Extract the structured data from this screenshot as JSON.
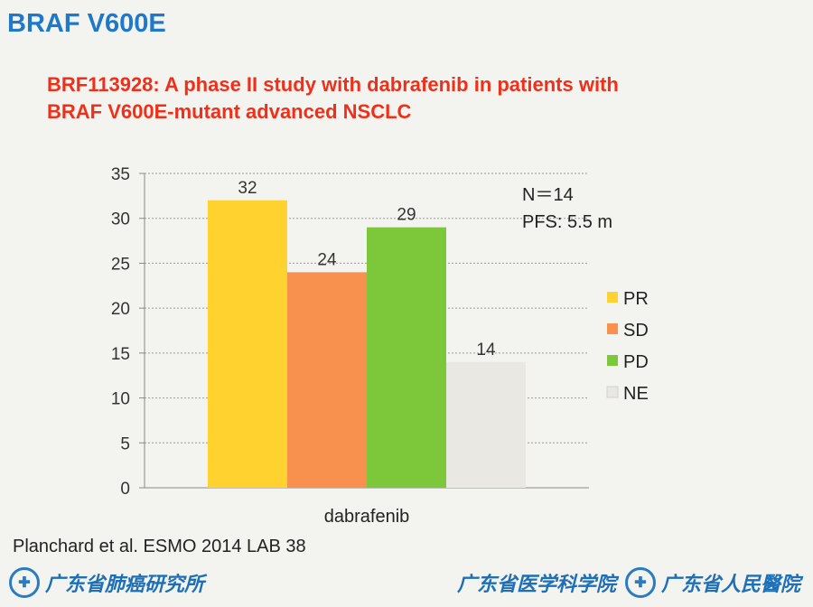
{
  "slide": {
    "title": "BRAF V600E",
    "subtitle_line1": "BRF113928: A phase II study with dabrafenib in patients with",
    "subtitle_line2": "BRAF V600E-mutant advanced NSCLC",
    "citation": "Planchard et al. ESMO 2014 LAB 38"
  },
  "footer": {
    "left_text": "广东省肺癌研究所",
    "right_text_1": "广东省医学科学院",
    "right_text_2": "广东省人民醫院",
    "emblem_icon": "hospital-emblem-icon"
  },
  "chart_data": {
    "type": "bar",
    "categories": [
      "dabrafenib"
    ],
    "series": [
      {
        "name": "PR",
        "values": [
          32
        ],
        "color": "#ffd230"
      },
      {
        "name": "SD",
        "values": [
          24
        ],
        "color": "#f9914e"
      },
      {
        "name": "PD",
        "values": [
          29
        ],
        "color": "#7cc83a"
      },
      {
        "name": "NE",
        "values": [
          14
        ],
        "color": "#e9e8e3"
      }
    ],
    "ylim": [
      0,
      35
    ],
    "yticks": [
      0,
      5,
      10,
      15,
      20,
      25,
      30,
      35
    ],
    "grid": true,
    "legend": "right",
    "annotations": [
      "N＝14",
      "PFS: 5.5 m"
    ]
  }
}
